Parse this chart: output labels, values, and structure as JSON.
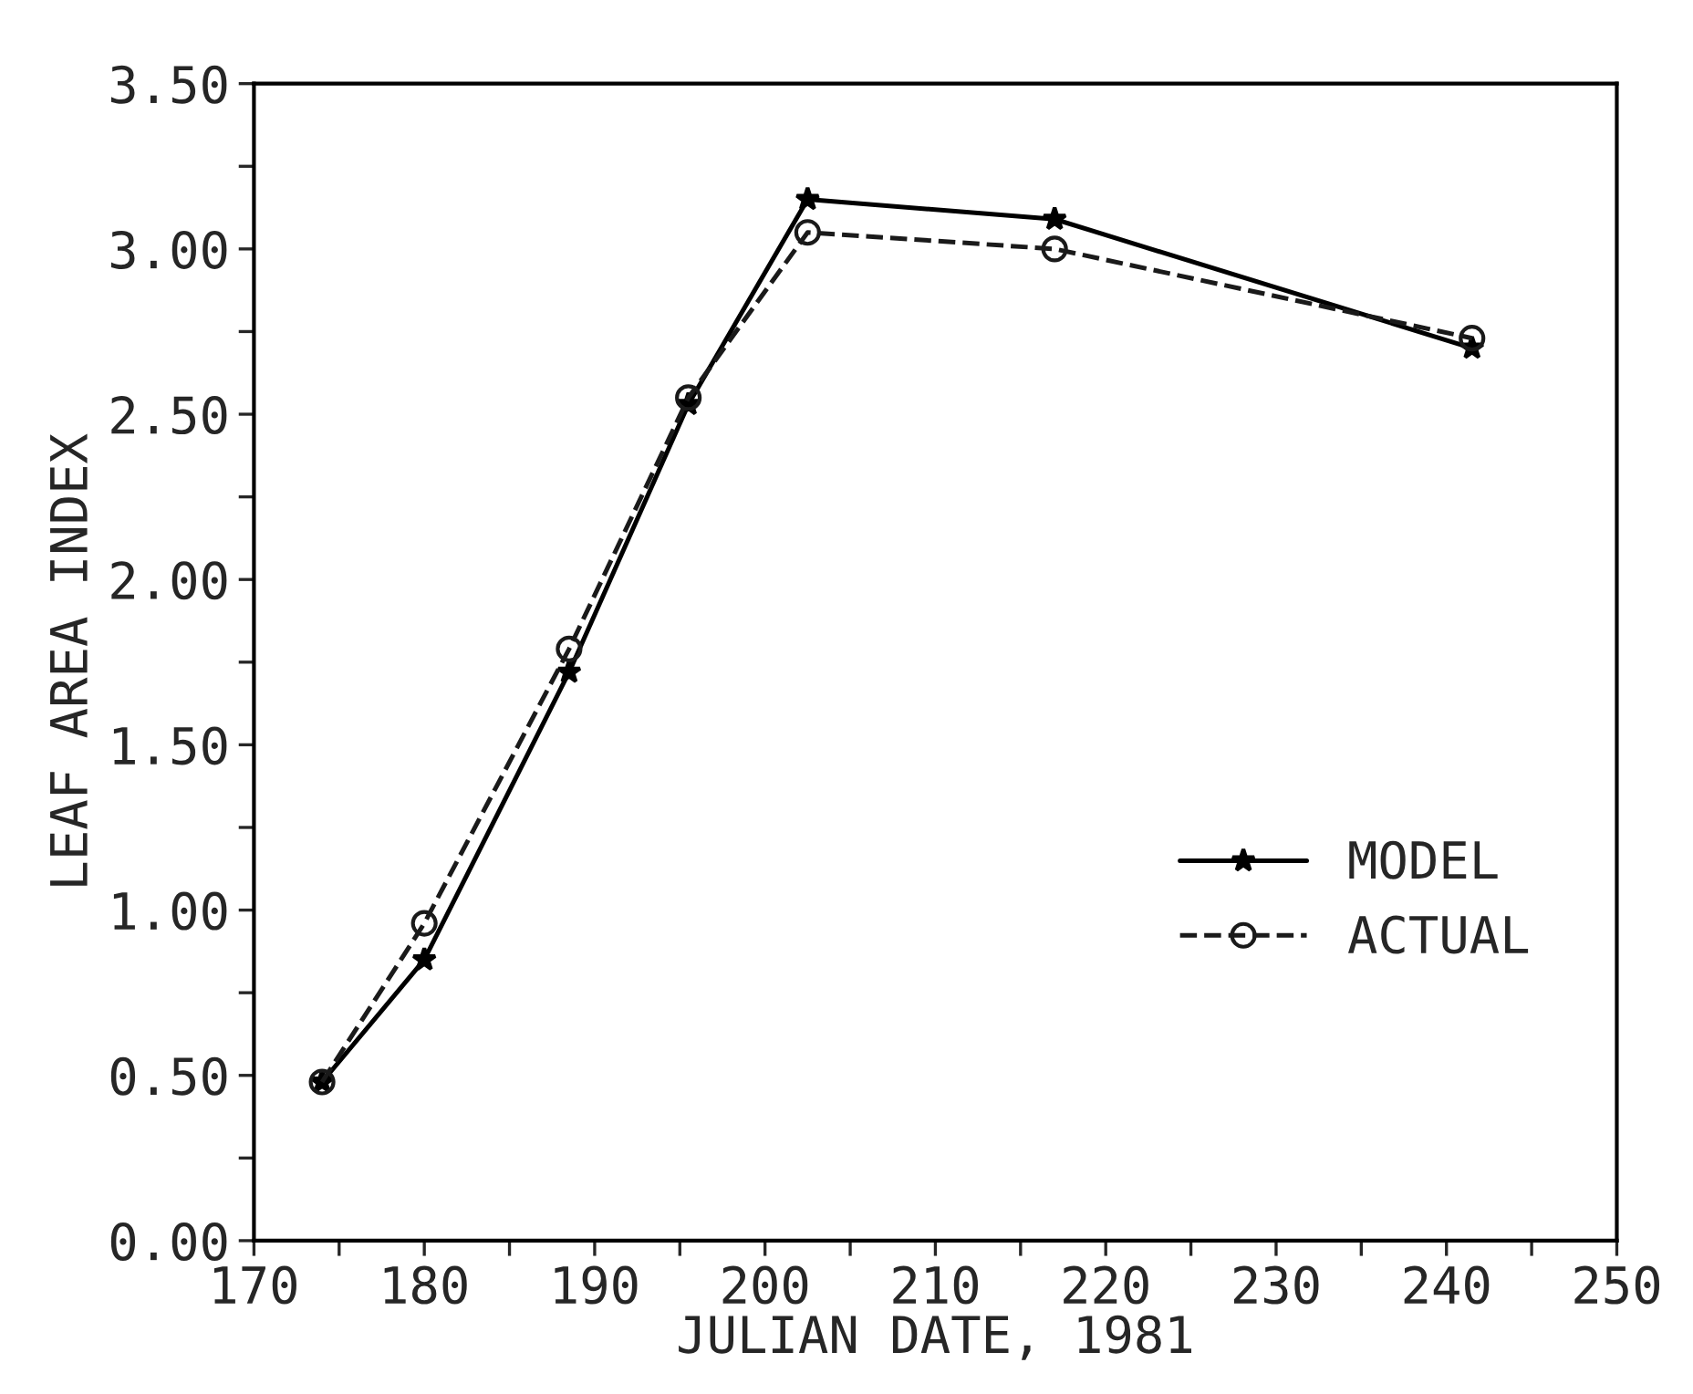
{
  "chart_data": {
    "type": "line",
    "xlabel": "JULIAN DATE, 1981",
    "ylabel": "LEAF AREA INDEX",
    "x": [
      174,
      180,
      188.5,
      195.5,
      202.5,
      217,
      241.5
    ],
    "series": [
      {
        "name": "MODEL",
        "color": "#000000",
        "marker": "star",
        "line_style": "solid",
        "values": [
          0.48,
          0.85,
          1.72,
          2.53,
          3.15,
          3.09,
          2.7
        ]
      },
      {
        "name": "ACTUAL",
        "color": "#1a1a1a",
        "marker": "circle",
        "line_style": "dashed",
        "values": [
          0.48,
          0.96,
          1.79,
          2.55,
          3.05,
          3.0,
          2.73
        ]
      }
    ],
    "xlim": [
      170,
      250
    ],
    "xticks": [
      170,
      {
        "value": 175,
        "label": null
      },
      180,
      {
        "value": 185,
        "label": null
      },
      190,
      {
        "value": 195,
        "label": null
      },
      200,
      {
        "value": 205,
        "label": null
      },
      210,
      {
        "value": 215,
        "label": null
      },
      220,
      {
        "value": 225,
        "label": null
      },
      230,
      {
        "value": 235,
        "label": null
      },
      240,
      {
        "value": 245,
        "label": null
      },
      250
    ],
    "ylim": [
      0,
      3.5
    ],
    "yticks": [
      {
        "value": 0,
        "label": "0.00"
      },
      {
        "value": 0.25,
        "label": null
      },
      {
        "value": 0.5,
        "label": "0.50"
      },
      {
        "value": 0.75,
        "label": null
      },
      {
        "value": 1,
        "label": "1.00"
      },
      {
        "value": 1.25,
        "label": null
      },
      {
        "value": 1.5,
        "label": "1.50"
      },
      {
        "value": 1.75,
        "label": null
      },
      {
        "value": 2,
        "label": "2.00"
      },
      {
        "value": 2.25,
        "label": null
      },
      {
        "value": 2.5,
        "label": "2.50"
      },
      {
        "value": 2.75,
        "label": null
      },
      {
        "value": 3,
        "label": "3.00"
      },
      {
        "value": 3.25,
        "label": null
      },
      {
        "value": 3.5,
        "label": "3.50"
      }
    ],
    "grid": false,
    "legend": "bottom right"
  }
}
